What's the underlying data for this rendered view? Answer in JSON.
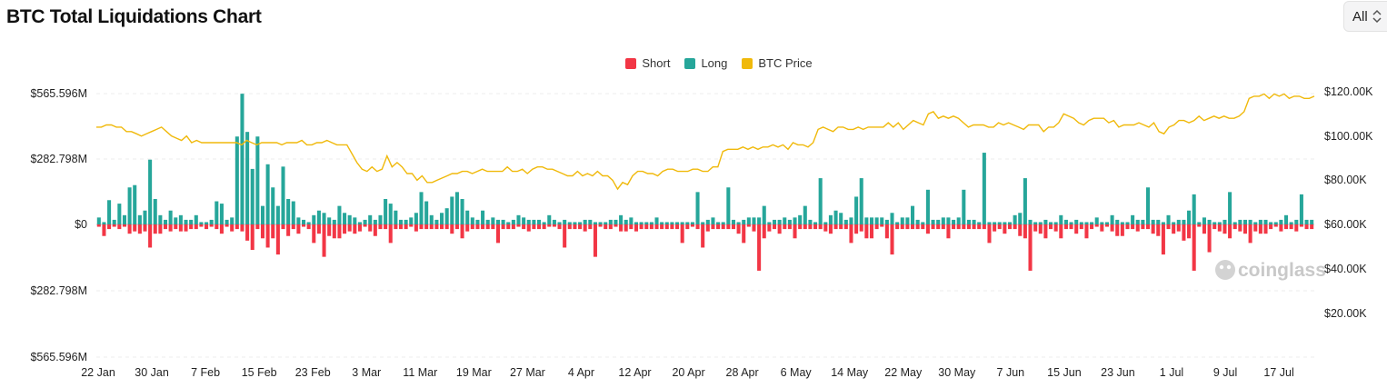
{
  "header": {
    "title": "BTC Total Liquidations Chart"
  },
  "range_select": {
    "value": "All"
  },
  "watermark": "coinglass",
  "colors": {
    "short": "#f23645",
    "long": "#26a69a",
    "price": "#f0b90b"
  },
  "legend": [
    {
      "label": "Short",
      "color": "#f23645"
    },
    {
      "label": "Long",
      "color": "#26a69a"
    },
    {
      "label": "BTC Price",
      "color": "#f0b90b"
    }
  ],
  "chart_data": {
    "type": "bar",
    "title": "BTC Total Liquidations Chart",
    "x_tick_labels": [
      "22 Jan",
      "30 Jan",
      "7 Feb",
      "15 Feb",
      "23 Feb",
      "3 Mar",
      "11 Mar",
      "19 Mar",
      "27 Mar",
      "4 Apr",
      "12 Apr",
      "20 Apr",
      "28 Apr",
      "6 May",
      "14 May",
      "22 May",
      "30 May",
      "7 Jun",
      "15 Jun",
      "23 Jun",
      "1 Jul",
      "9 Jul",
      "17 Jul"
    ],
    "y_left_tick_labels": [
      "$565.596M",
      "$282.798M",
      "$0",
      "$282.798M",
      "$565.596M"
    ],
    "y_left_range": [
      -565.596,
      565.596
    ],
    "y_left_unit": "$M",
    "y_right_tick_labels": [
      "$120.00K",
      "$100.00K",
      "$80.00K",
      "$60.00K",
      "$40.00K",
      "$20.00K"
    ],
    "y_right_range": [
      0,
      120000
    ],
    "grid": true,
    "legend_position": "top-center",
    "series": [
      {
        "name": "Long",
        "values": [
          30,
          10,
          105,
          20,
          90,
          40,
          160,
          170,
          40,
          60,
          280,
          110,
          40,
          20,
          60,
          30,
          40,
          20,
          20,
          40,
          10,
          10,
          20,
          100,
          90,
          20,
          30,
          380,
          565,
          400,
          240,
          380,
          80,
          260,
          160,
          80,
          250,
          110,
          100,
          30,
          20,
          10,
          40,
          60,
          50,
          30,
          20,
          80,
          50,
          40,
          30,
          10,
          20,
          40,
          20,
          40,
          110,
          90,
          60,
          20,
          20,
          30,
          50,
          140,
          100,
          40,
          20,
          50,
          70,
          120,
          140,
          110,
          60,
          30,
          20,
          60,
          20,
          30,
          20,
          20,
          10,
          20,
          40,
          30,
          20,
          20,
          20,
          10,
          40,
          20,
          10,
          20,
          10,
          10,
          10,
          20,
          20,
          10,
          10,
          10,
          20,
          20,
          40,
          20,
          30,
          10,
          10,
          10,
          10,
          30,
          10,
          10,
          10,
          10,
          10,
          10,
          10,
          140,
          10,
          20,
          30,
          10,
          10,
          160,
          20,
          10,
          20,
          30,
          30,
          30,
          80,
          10,
          20,
          20,
          30,
          20,
          30,
          40,
          80,
          20,
          10,
          200,
          10,
          40,
          60,
          50,
          20,
          30,
          120,
          200,
          30,
          30,
          30,
          30,
          20,
          50,
          10,
          30,
          30,
          80,
          20,
          10,
          150,
          20,
          20,
          30,
          30,
          20,
          30,
          150,
          20,
          20,
          10,
          310,
          10,
          10,
          10,
          10,
          10,
          40,
          50,
          200,
          20,
          10,
          10,
          20,
          10,
          10,
          40,
          20,
          10,
          20,
          10,
          10,
          10,
          30,
          10,
          10,
          40,
          20,
          10,
          10,
          40,
          20,
          20,
          160,
          20,
          20,
          10,
          40,
          10,
          20,
          20,
          60,
          130,
          10,
          30,
          20,
          10,
          10,
          20,
          140,
          10,
          20,
          20,
          20,
          10,
          20,
          20,
          10,
          10,
          20,
          40,
          10,
          20,
          130,
          20,
          20
        ],
        "color": "#26a69a"
      },
      {
        "name": "Short",
        "values": [
          10,
          50,
          20,
          10,
          20,
          10,
          40,
          30,
          40,
          30,
          100,
          40,
          40,
          20,
          30,
          20,
          30,
          30,
          20,
          20,
          10,
          20,
          10,
          20,
          40,
          10,
          30,
          20,
          30,
          70,
          110,
          20,
          60,
          100,
          60,
          130,
          20,
          50,
          20,
          40,
          10,
          20,
          80,
          40,
          140,
          50,
          60,
          60,
          40,
          30,
          40,
          30,
          10,
          30,
          50,
          20,
          20,
          80,
          20,
          20,
          20,
          10,
          30,
          20,
          20,
          20,
          20,
          20,
          20,
          40,
          20,
          60,
          30,
          20,
          20,
          20,
          20,
          20,
          80,
          20,
          20,
          20,
          10,
          20,
          30,
          20,
          20,
          20,
          10,
          10,
          20,
          100,
          20,
          20,
          20,
          30,
          20,
          140,
          10,
          20,
          20,
          10,
          30,
          30,
          20,
          30,
          20,
          20,
          20,
          20,
          20,
          20,
          20,
          20,
          80,
          20,
          10,
          20,
          100,
          30,
          20,
          20,
          20,
          20,
          20,
          40,
          80,
          10,
          30,
          200,
          60,
          30,
          20,
          40,
          20,
          20,
          60,
          20,
          20,
          20,
          20,
          20,
          30,
          40,
          20,
          20,
          20,
          80,
          40,
          30,
          60,
          60,
          20,
          10,
          60,
          130,
          20,
          20,
          20,
          20,
          20,
          20,
          40,
          20,
          20,
          20,
          60,
          20,
          20,
          20,
          20,
          20,
          20,
          20,
          80,
          30,
          20,
          40,
          20,
          20,
          50,
          60,
          200,
          30,
          40,
          60,
          20,
          30,
          60,
          20,
          20,
          40,
          20,
          60,
          20,
          10,
          30,
          10,
          30,
          50,
          50,
          20,
          20,
          30,
          20,
          20,
          40,
          50,
          130,
          20,
          40,
          30,
          70,
          60,
          200,
          10,
          40,
          120,
          20,
          30,
          40,
          60,
          20,
          30,
          40,
          80,
          30,
          40,
          40,
          20,
          10,
          30,
          20,
          20,
          30,
          10,
          20,
          20
        ],
        "color": "#f23645"
      }
    ],
    "price_series": {
      "name": "BTC Price",
      "values": [
        104000,
        104000,
        105000,
        105000,
        104000,
        104000,
        102000,
        102000,
        101000,
        100000,
        101000,
        102000,
        103000,
        104000,
        102000,
        100000,
        99000,
        98000,
        100000,
        97000,
        98000,
        97000,
        97000,
        97000,
        97000,
        97000,
        97000,
        97000,
        97000,
        96000,
        98000,
        97000,
        96000,
        97000,
        97000,
        97000,
        97000,
        96000,
        97000,
        97000,
        97000,
        98000,
        96000,
        96000,
        97000,
        97000,
        98000,
        97000,
        96000,
        96000,
        96000,
        92000,
        88000,
        85000,
        84000,
        86000,
        84000,
        85000,
        91000,
        86000,
        88000,
        86000,
        83000,
        83000,
        80000,
        82000,
        79000,
        79000,
        80000,
        81000,
        82000,
        83000,
        83000,
        84000,
        84000,
        83000,
        84000,
        85000,
        84000,
        84000,
        84000,
        84000,
        86000,
        84000,
        84000,
        85000,
        83000,
        85000,
        86000,
        86000,
        85000,
        85000,
        84000,
        83000,
        82000,
        82000,
        84000,
        82000,
        83000,
        82000,
        84000,
        82000,
        82000,
        80000,
        76000,
        79000,
        78000,
        82000,
        84000,
        84000,
        83000,
        83000,
        82000,
        84000,
        85000,
        85000,
        84000,
        84000,
        84000,
        85000,
        85000,
        84000,
        84000,
        86000,
        86000,
        93000,
        94000,
        94000,
        94000,
        95000,
        94000,
        95000,
        94000,
        95000,
        95000,
        96000,
        95000,
        96000,
        94000,
        97000,
        96000,
        96000,
        95000,
        97000,
        103000,
        104000,
        103000,
        102000,
        104000,
        104000,
        103000,
        103000,
        104000,
        103000,
        104000,
        104000,
        104000,
        104000,
        106000,
        104000,
        106000,
        103000,
        105000,
        107000,
        106000,
        105000,
        110000,
        111000,
        108000,
        109000,
        108000,
        109000,
        108000,
        106000,
        104000,
        105000,
        105000,
        105000,
        104000,
        104000,
        106000,
        105000,
        106000,
        105000,
        104000,
        103000,
        105000,
        105000,
        105000,
        102000,
        104000,
        104000,
        106000,
        110000,
        109000,
        108000,
        106000,
        105000,
        107000,
        108000,
        108000,
        108000,
        106000,
        107000,
        104000,
        105000,
        105000,
        105000,
        106000,
        105000,
        104000,
        106000,
        102000,
        101000,
        104000,
        105000,
        107000,
        107000,
        106000,
        107000,
        109000,
        107000,
        108000,
        109000,
        108000,
        109000,
        108000,
        108000,
        109000,
        111000,
        117000,
        118000,
        118000,
        119000,
        117000,
        119000,
        118000,
        119000,
        117000,
        118000,
        118000,
        117000,
        117000,
        118000
      ],
      "color": "#f0b90b"
    }
  }
}
